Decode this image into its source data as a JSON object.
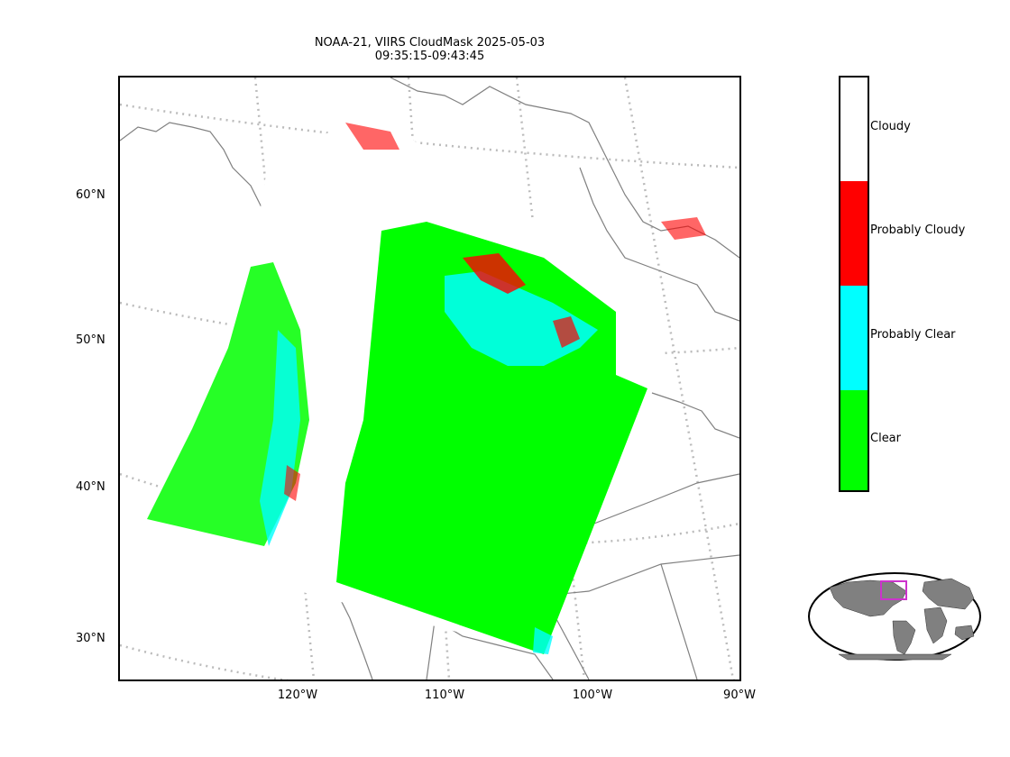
{
  "title": {
    "line1": "NOAA-21, VIIRS CloudMask 2025-05-03",
    "line2": "09:35:15-09:43:45"
  },
  "axes": {
    "lat_labels": [
      "60°N",
      "50°N",
      "40°N",
      "30°N"
    ],
    "lon_labels": [
      "120°W",
      "110°W",
      "100°W",
      "90°W"
    ]
  },
  "colorbar": {
    "classes": [
      {
        "label": "Cloudy",
        "color": "#ffffff"
      },
      {
        "label": "Probably Cloudy",
        "color": "#ff0000"
      },
      {
        "label": "Probably Clear",
        "color": "#00ffff"
      },
      {
        "label": "Clear",
        "color": "#00ff00"
      }
    ]
  },
  "colors": {
    "coastline": "#808080",
    "graticule": "#bbbbbb",
    "locator_land": "#808080",
    "locator_box": "#cc33cc"
  },
  "icons": {
    "locator": "world-globe-icon"
  }
}
